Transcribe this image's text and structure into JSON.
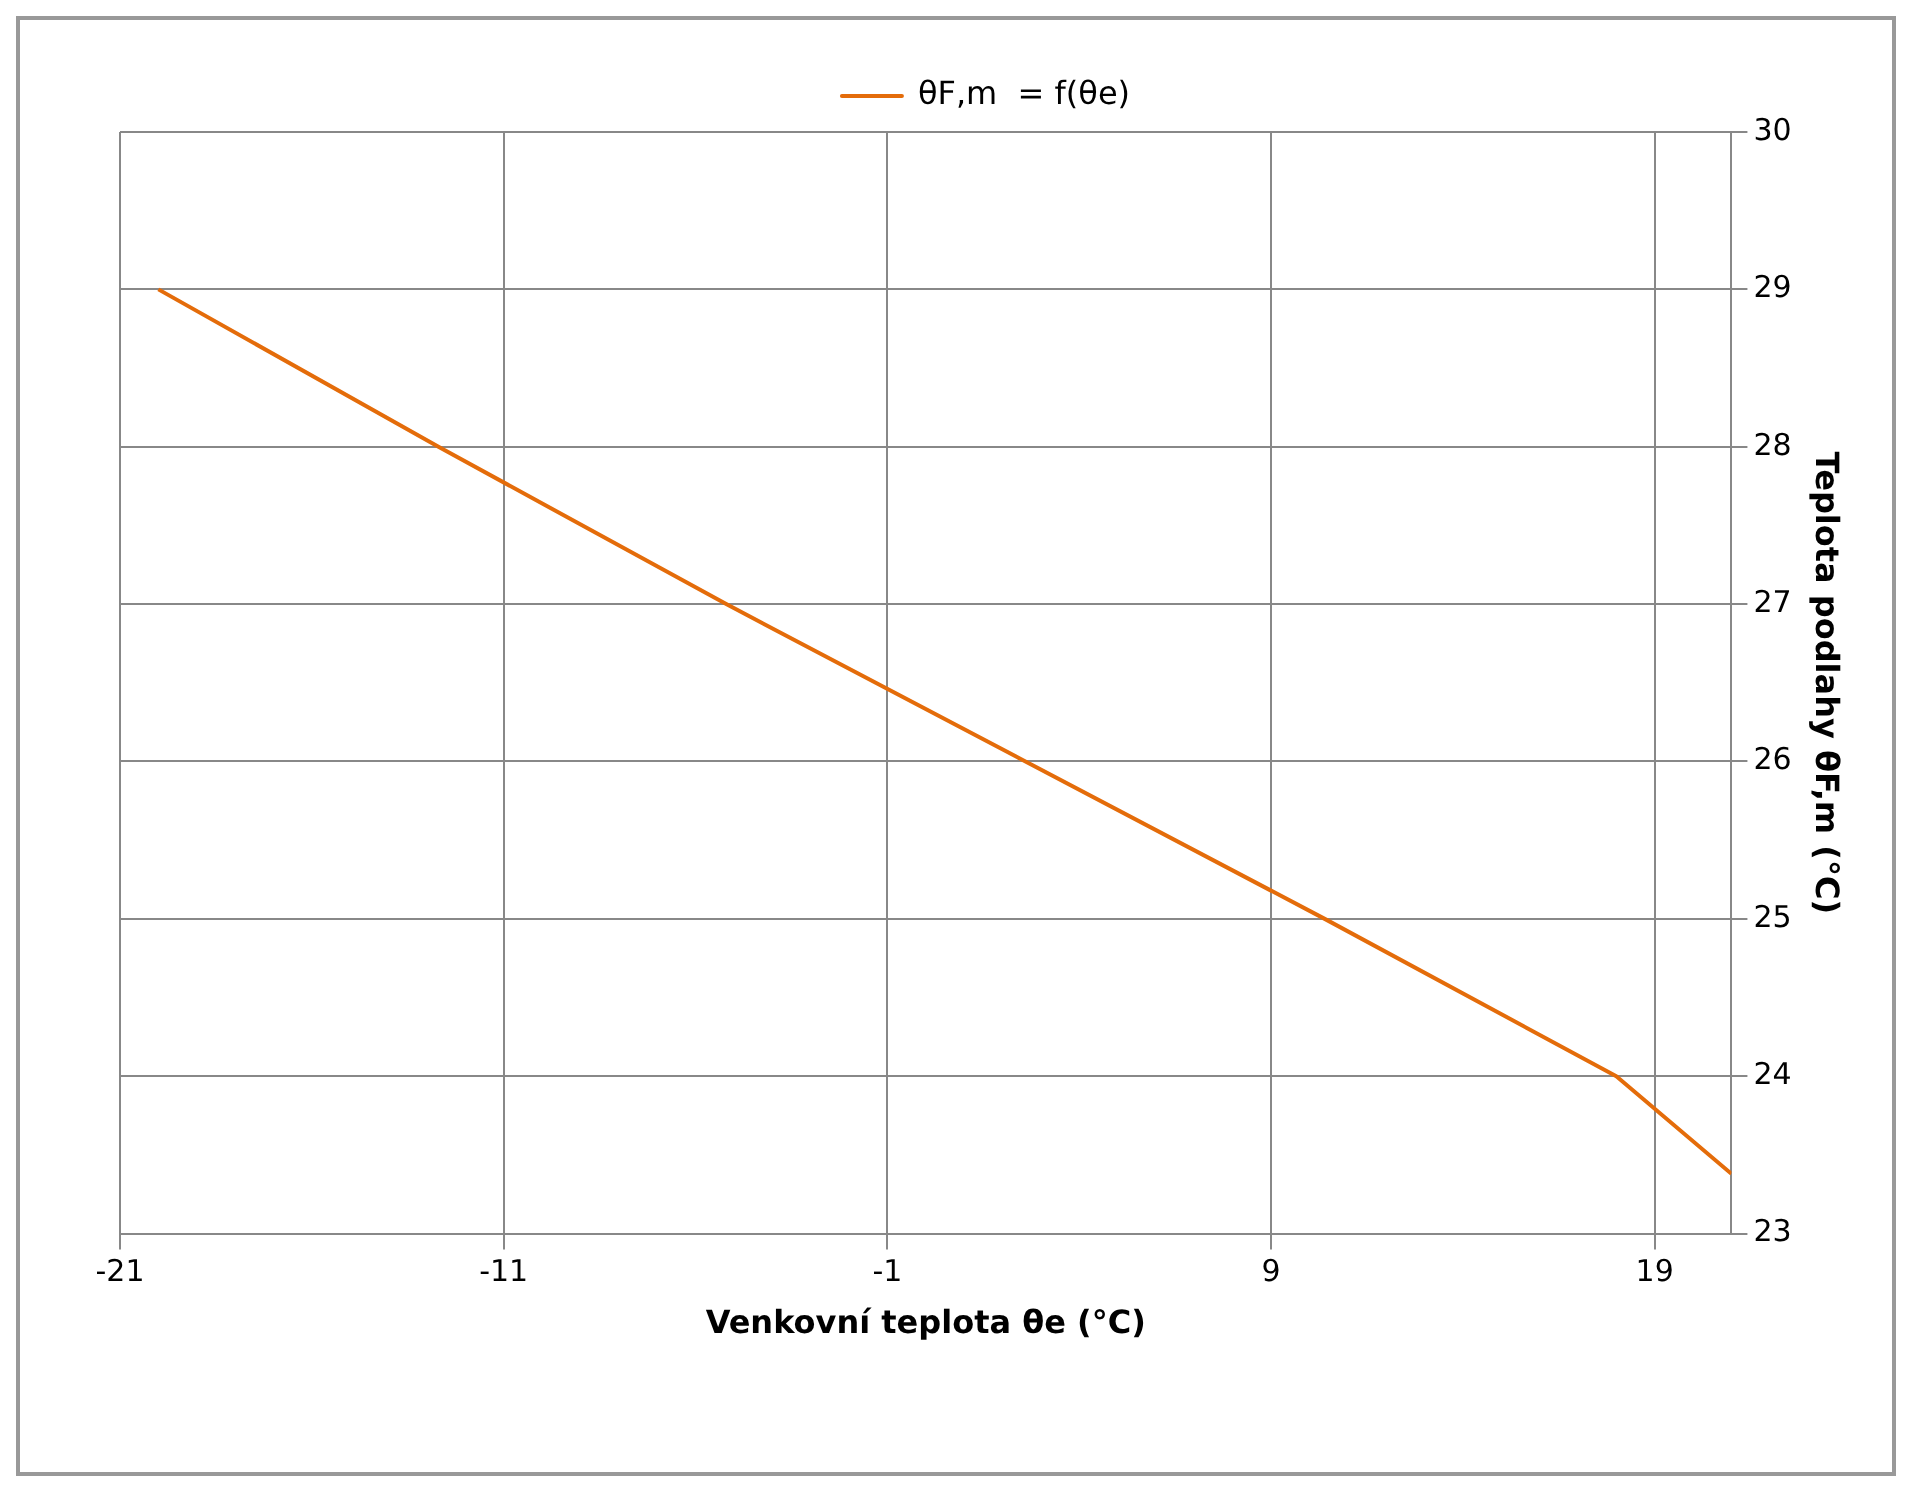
{
  "chart_data": {
    "type": "line",
    "xlabel": "Venkovní teplota θe (°C)",
    "ylabel": "Teplota podlahy θF,m (°C)",
    "x": [
      -20,
      -12.7,
      -5.2,
      2.6,
      10.4,
      18,
      21
    ],
    "series": [
      {
        "name": "θF,m  = f(θe)",
        "color": "#e46c0a",
        "values": [
          29,
          28,
          27,
          26,
          25,
          24,
          23.38
        ]
      }
    ],
    "xlim": [
      -21,
      21
    ],
    "xticks": [
      -21,
      -11,
      -1,
      9,
      19
    ],
    "ylim": [
      23,
      30
    ],
    "yticks": [
      23,
      24,
      25,
      26,
      27,
      28,
      29,
      30
    ],
    "grid": true,
    "legend": "top",
    "marker": "none",
    "line_style": "solid"
  }
}
